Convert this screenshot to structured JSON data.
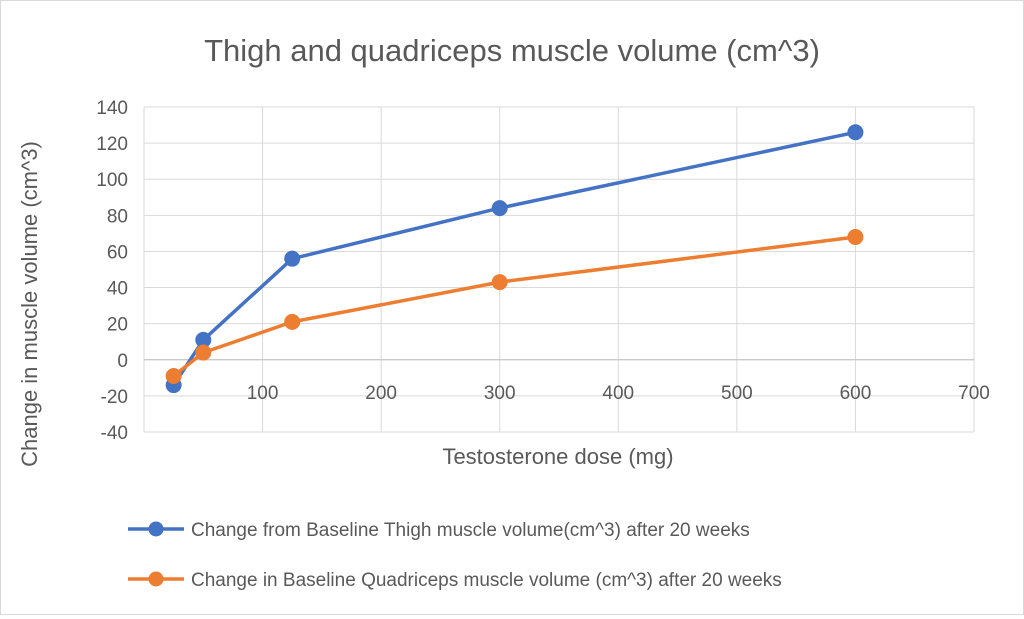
{
  "chart_data": {
    "type": "line",
    "title": "Thigh and quadriceps muscle volume (cm^3)",
    "xlabel": "Testosterone dose (mg)",
    "ylabel": "Change in muscle volume (cm^3)",
    "xlim": [
      0,
      700
    ],
    "ylim": [
      -40,
      140
    ],
    "xticks": [
      100,
      200,
      300,
      400,
      500,
      600,
      700
    ],
    "yticks": [
      -40,
      -20,
      0,
      20,
      40,
      60,
      80,
      100,
      120,
      140
    ],
    "grid": true,
    "legend": "bottom",
    "series": [
      {
        "name": "Change from Baseline Thigh muscle volume(cm^3) after 20 weeks",
        "color": "#4472c4",
        "x": [
          25,
          50,
          125,
          300,
          600
        ],
        "y": [
          -14,
          11,
          56,
          84,
          126
        ]
      },
      {
        "name": "Change in Baseline Quadriceps muscle volume (cm^3) after 20 weeks",
        "color": "#ed7d31",
        "x": [
          25,
          50,
          125,
          300,
          600
        ],
        "y": [
          -9,
          4,
          21,
          43,
          68
        ]
      }
    ]
  }
}
